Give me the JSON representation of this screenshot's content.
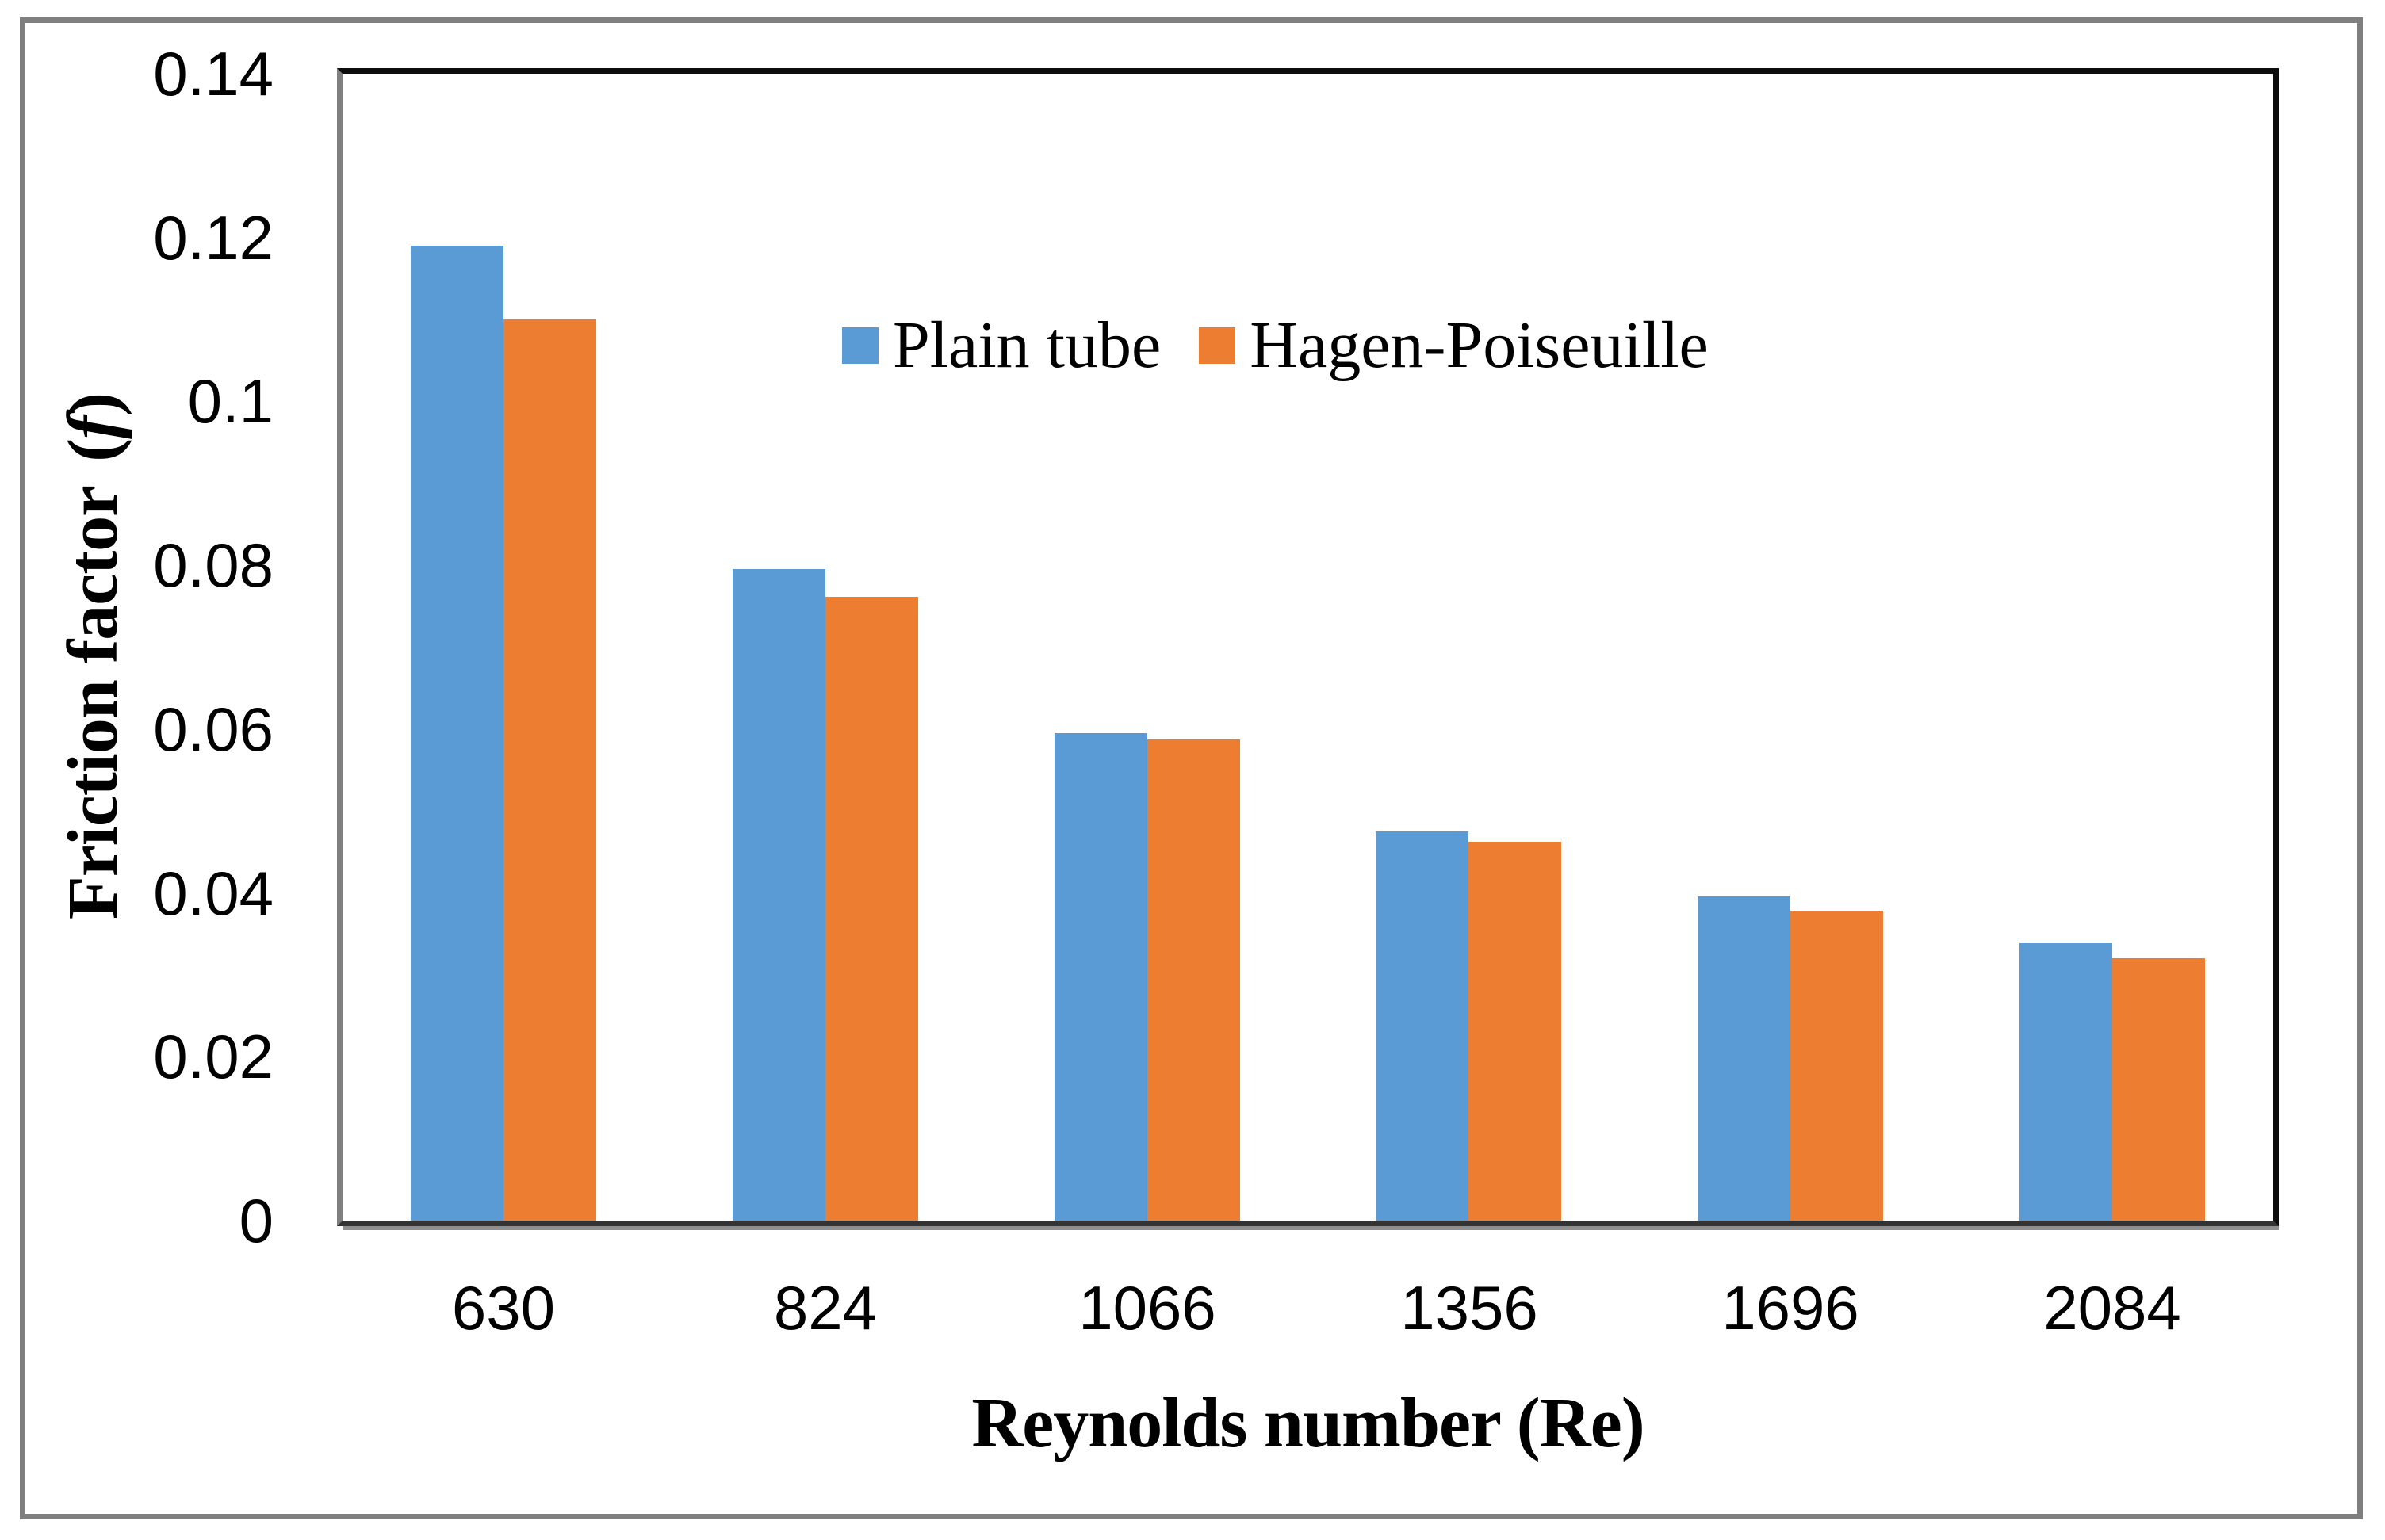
{
  "figure": {
    "frame_border_color": "#7f7f7f",
    "plot_border_color": "#0d0d0d",
    "background_color": "#ffffff"
  },
  "chart_data": {
    "type": "bar",
    "title": "",
    "categories": [
      "630",
      "824",
      "1066",
      "1356",
      "1696",
      "2084"
    ],
    "series": [
      {
        "name": "Plain tube",
        "color": "#5B9BD5",
        "values": [
          0.119,
          0.0795,
          0.0595,
          0.0475,
          0.0396,
          0.0339
        ]
      },
      {
        "name": "Hagen-Poiseuille",
        "color": "#ED7D31",
        "values": [
          0.11,
          0.0761,
          0.0587,
          0.0462,
          0.0378,
          0.032
        ]
      }
    ],
    "xlabel": "Reynolds number (Re)",
    "ylabel": "Friction factor (f)",
    "ylabel_prefix": "Friction factor",
    "ylabel_open": "(",
    "ylabel_symbol": "f",
    "ylabel_close": ")",
    "ylim": [
      0,
      0.14
    ],
    "ytick_step": 0.02,
    "ytick_labels": [
      "0",
      "0.02",
      "0.04",
      "0.06",
      "0.08",
      "0.1",
      "0.12",
      "0.14"
    ],
    "grid": false,
    "legend_position": "inside-top-center"
  }
}
